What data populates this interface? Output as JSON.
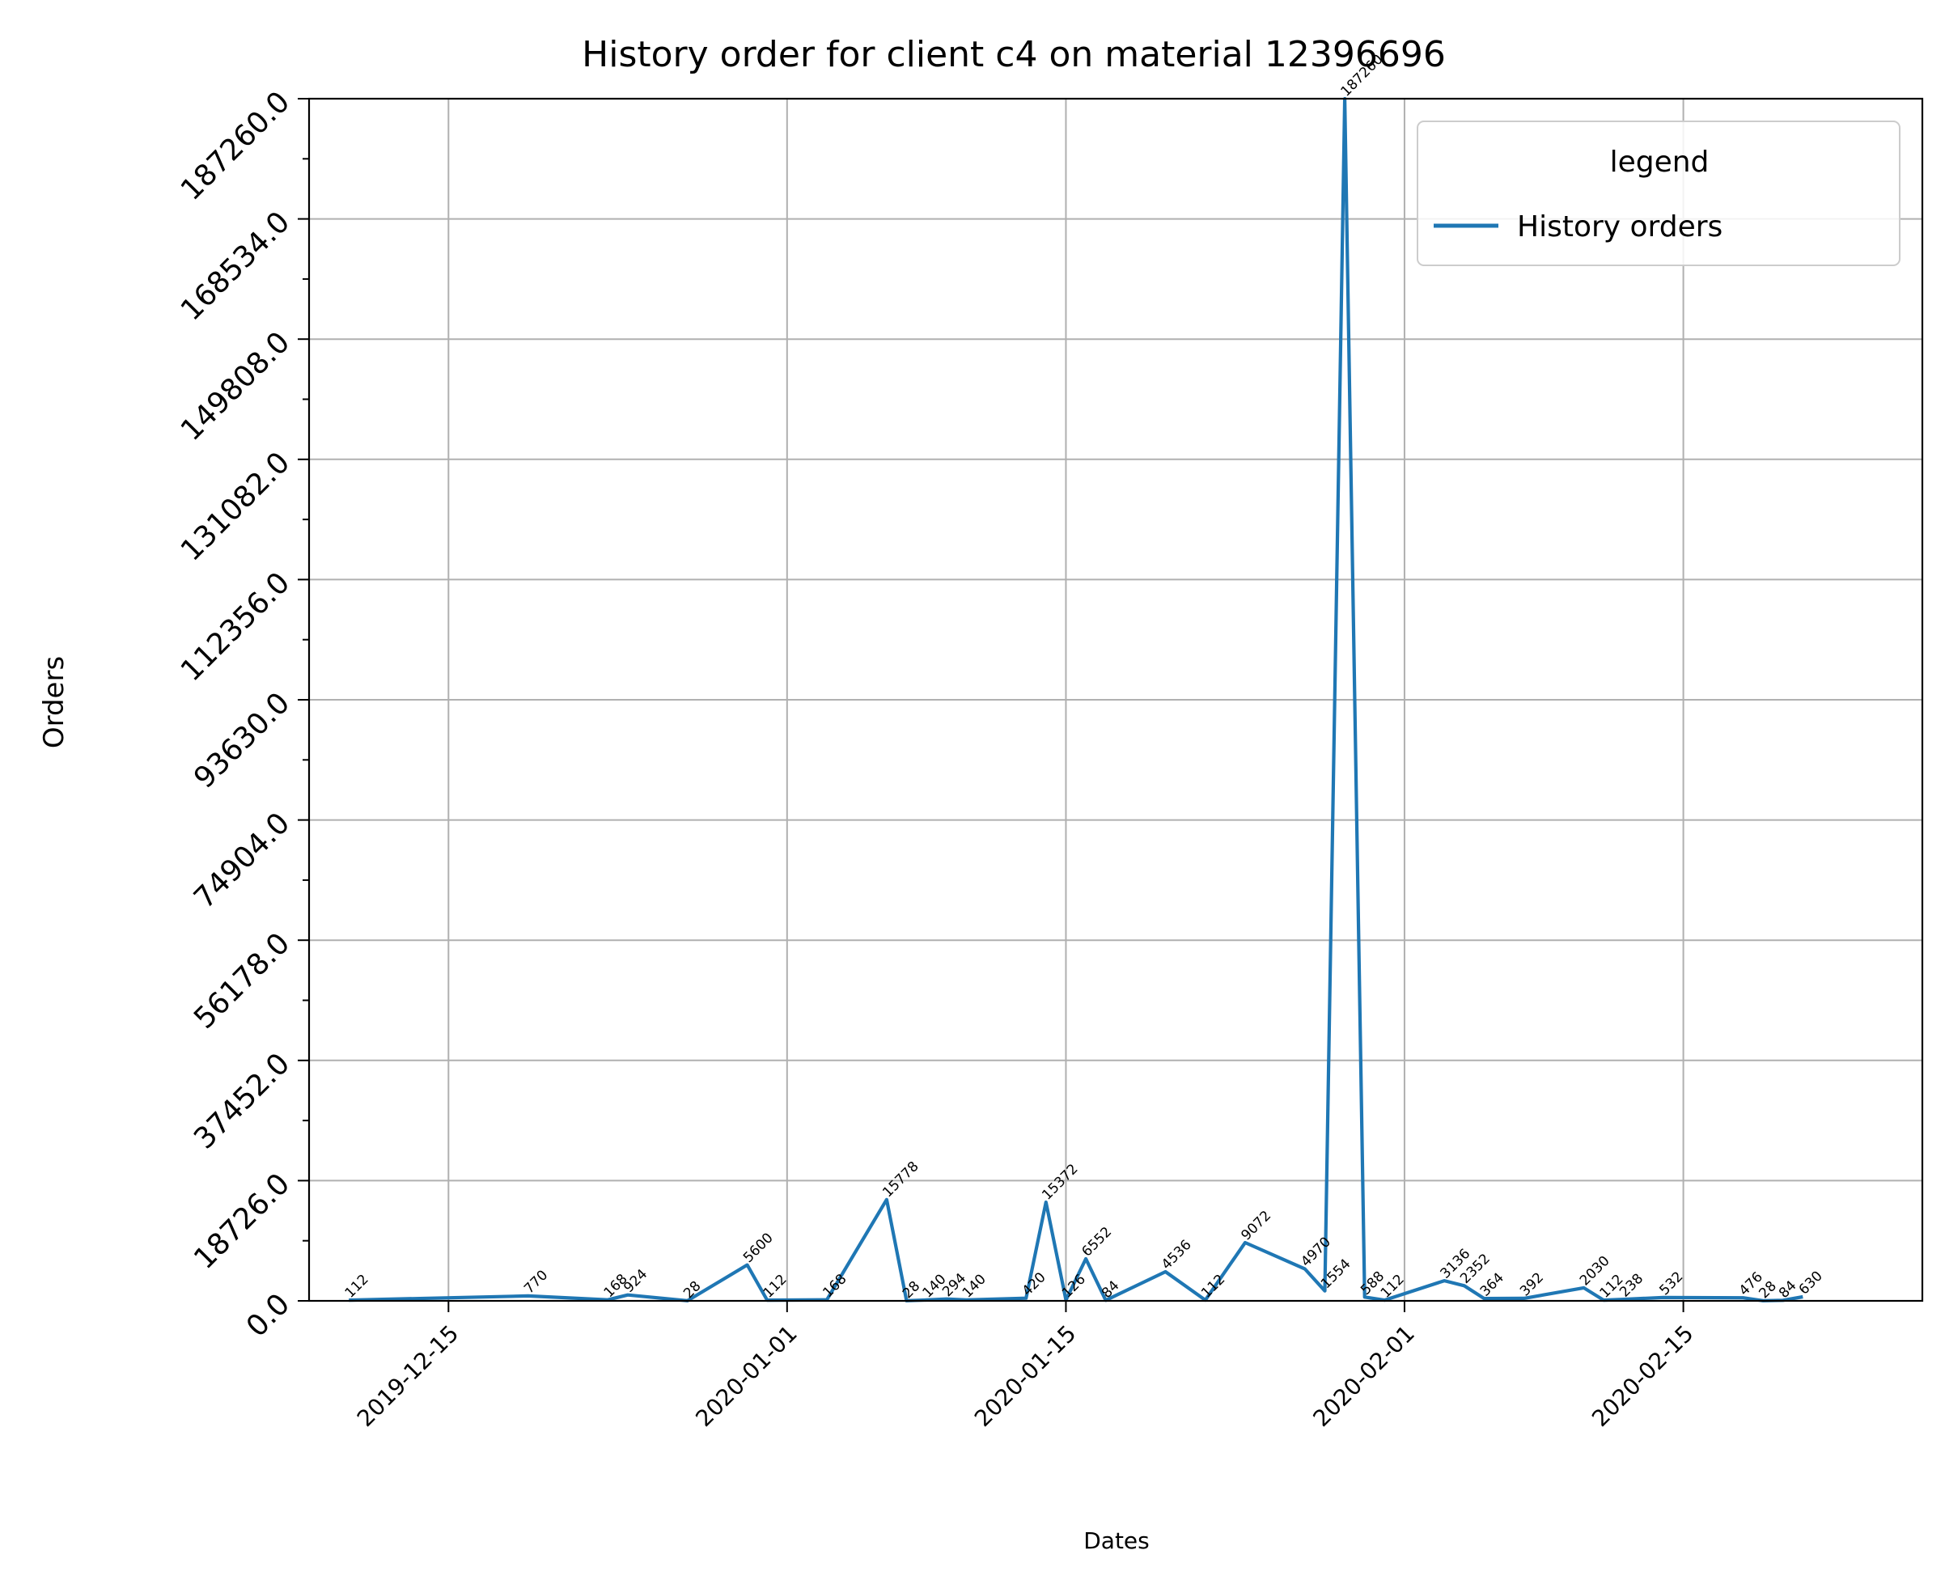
{
  "chart_data": {
    "type": "line",
    "title": "History order for client c4 on material 12396696",
    "xlabel": "Dates",
    "ylabel": "Orders",
    "xlim": [
      "2019-12-08",
      "2020-02-27"
    ],
    "ylim": [
      0,
      187260
    ],
    "grid": true,
    "legend": {
      "title": "legend",
      "position": "top-right"
    },
    "x_ticks": [
      "2019-12-15",
      "2020-01-01",
      "2020-01-15",
      "2020-02-01",
      "2020-02-15"
    ],
    "y_ticks": [
      "0.0",
      "18726.0",
      "37452.0",
      "56178.0",
      "74904.0",
      "93630.0",
      "112356.0",
      "131082.0",
      "149808.0",
      "168534.0",
      "187260.0"
    ],
    "series": [
      {
        "name": "History orders",
        "color": "#1f77b4",
        "points": [
          {
            "x": "2019-12-10",
            "y": 112
          },
          {
            "x": "2019-12-19",
            "y": 770
          },
          {
            "x": "2019-12-23",
            "y": 168
          },
          {
            "x": "2019-12-24",
            "y": 924
          },
          {
            "x": "2019-12-27",
            "y": 28
          },
          {
            "x": "2019-12-30",
            "y": 5600
          },
          {
            "x": "2019-12-31",
            "y": 112
          },
          {
            "x": "2020-01-03",
            "y": 168
          },
          {
            "x": "2020-01-06",
            "y": 15778
          },
          {
            "x": "2020-01-07",
            "y": 28
          },
          {
            "x": "2020-01-08",
            "y": 140
          },
          {
            "x": "2020-01-09",
            "y": 294
          },
          {
            "x": "2020-01-10",
            "y": 140
          },
          {
            "x": "2020-01-13",
            "y": 420
          },
          {
            "x": "2020-01-14",
            "y": 15372
          },
          {
            "x": "2020-01-15",
            "y": 126
          },
          {
            "x": "2020-01-16",
            "y": 6552
          },
          {
            "x": "2020-01-17",
            "y": 84
          },
          {
            "x": "2020-01-20",
            "y": 4536
          },
          {
            "x": "2020-01-22",
            "y": 112
          },
          {
            "x": "2020-01-24",
            "y": 9072
          },
          {
            "x": "2020-01-27",
            "y": 4970
          },
          {
            "x": "2020-01-28",
            "y": 1554
          },
          {
            "x": "2020-01-29",
            "y": 187260
          },
          {
            "x": "2020-01-30",
            "y": 588
          },
          {
            "x": "2020-01-31",
            "y": 112
          },
          {
            "x": "2020-02-03",
            "y": 3136
          },
          {
            "x": "2020-02-04",
            "y": 2352
          },
          {
            "x": "2020-02-05",
            "y": 364
          },
          {
            "x": "2020-02-07",
            "y": 392
          },
          {
            "x": "2020-02-10",
            "y": 2030
          },
          {
            "x": "2020-02-11",
            "y": 112
          },
          {
            "x": "2020-02-12",
            "y": 238
          },
          {
            "x": "2020-02-14",
            "y": 532
          },
          {
            "x": "2020-02-18",
            "y": 476
          },
          {
            "x": "2020-02-19",
            "y": 28
          },
          {
            "x": "2020-02-20",
            "y": 84
          },
          {
            "x": "2020-02-21",
            "y": 630
          }
        ]
      }
    ]
  }
}
